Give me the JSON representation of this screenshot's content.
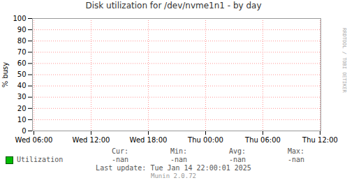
{
  "chart_data": {
    "type": "line",
    "title": "Disk utilization for /dev/nvme1n1 - by day",
    "y_label": "% busy",
    "x": [
      "Wed 06:00",
      "Wed 12:00",
      "Wed 18:00",
      "Thu 00:00",
      "Thu 06:00",
      "Thu 12:00"
    ],
    "ylim": [
      0,
      100
    ],
    "yticks": [
      0,
      10,
      20,
      30,
      40,
      50,
      60,
      70,
      80,
      90,
      100
    ],
    "grid": true,
    "legend": "bottom",
    "series": [
      {
        "name": "Utilization",
        "color": "#00bb00",
        "values": [
          null,
          null,
          null,
          null,
          null,
          null
        ],
        "stats": [
          {
            "label": "Cur:",
            "value": "-nan"
          },
          {
            "label": "Min:",
            "value": "-nan"
          },
          {
            "label": "Avg:",
            "value": "-nan"
          },
          {
            "label": "Max:",
            "value": "-nan"
          }
        ]
      }
    ],
    "annotations": [
      "Last update: Tue Jan 14 22:00:01 2025",
      "Munin 2.0.72",
      "RRDTOOL / TOBI OETIKER"
    ]
  }
}
